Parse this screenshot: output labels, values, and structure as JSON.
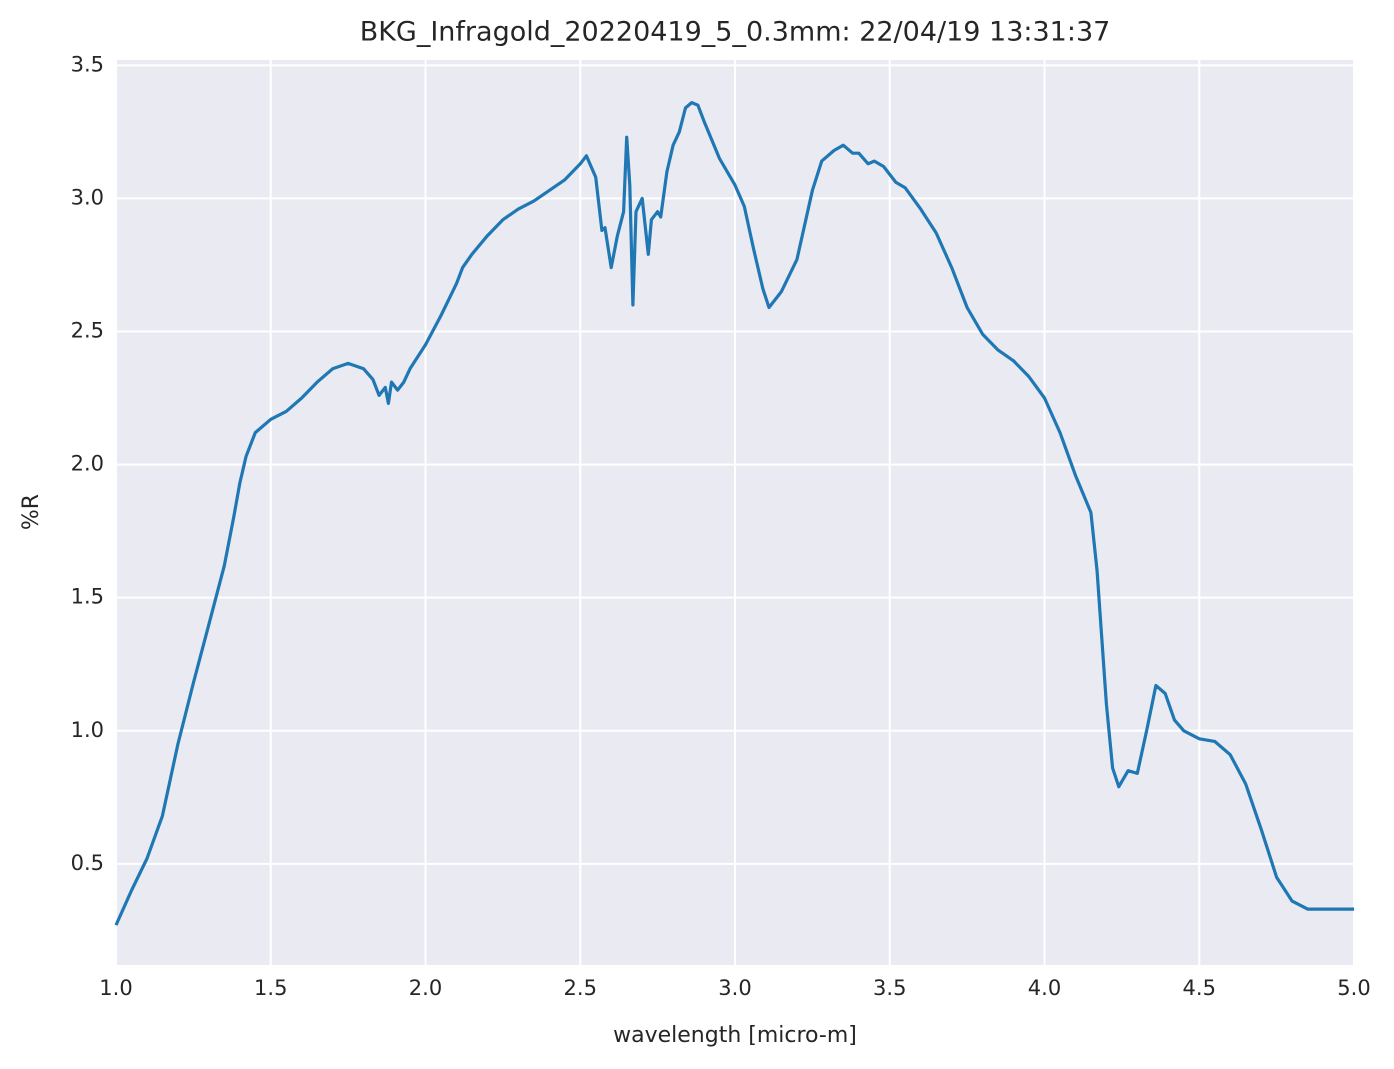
{
  "chart_data": {
    "type": "line",
    "title": "BKG_Infragold_20220419_5_0.3mm:  22/04/19 13:31:37",
    "xlabel": "wavelength [micro-m]",
    "ylabel": "%R",
    "x": [
      1.0,
      1.05,
      1.1,
      1.15,
      1.2,
      1.25,
      1.3,
      1.35,
      1.38,
      1.4,
      1.42,
      1.45,
      1.5,
      1.55,
      1.6,
      1.65,
      1.7,
      1.75,
      1.8,
      1.83,
      1.85,
      1.87,
      1.88,
      1.89,
      1.91,
      1.93,
      1.95,
      2.0,
      2.05,
      2.1,
      2.12,
      2.15,
      2.2,
      2.25,
      2.3,
      2.35,
      2.4,
      2.45,
      2.5,
      2.52,
      2.55,
      2.57,
      2.58,
      2.6,
      2.62,
      2.64,
      2.65,
      2.66,
      2.67,
      2.68,
      2.7,
      2.72,
      2.73,
      2.75,
      2.76,
      2.78,
      2.8,
      2.82,
      2.84,
      2.86,
      2.88,
      2.9,
      2.95,
      3.0,
      3.03,
      3.06,
      3.09,
      3.11,
      3.15,
      3.2,
      3.25,
      3.28,
      3.32,
      3.35,
      3.38,
      3.4,
      3.43,
      3.45,
      3.48,
      3.52,
      3.55,
      3.6,
      3.65,
      3.7,
      3.75,
      3.8,
      3.85,
      3.9,
      3.95,
      4.0,
      4.05,
      4.1,
      4.15,
      4.17,
      4.2,
      4.22,
      4.24,
      4.27,
      4.3,
      4.33,
      4.36,
      4.39,
      4.42,
      4.45,
      4.5,
      4.55,
      4.6,
      4.65,
      4.7,
      4.75,
      4.8,
      4.85,
      4.9,
      5.0
    ],
    "series": [
      {
        "name": "%R",
        "color": "#1f77b4",
        "values": [
          0.27,
          0.4,
          0.52,
          0.68,
          0.95,
          1.18,
          1.4,
          1.62,
          1.8,
          1.93,
          2.03,
          2.12,
          2.17,
          2.2,
          2.25,
          2.31,
          2.36,
          2.38,
          2.36,
          2.32,
          2.26,
          2.29,
          2.23,
          2.31,
          2.28,
          2.31,
          2.36,
          2.45,
          2.56,
          2.68,
          2.74,
          2.79,
          2.86,
          2.92,
          2.96,
          2.99,
          3.03,
          3.07,
          3.13,
          3.16,
          3.08,
          2.88,
          2.89,
          2.74,
          2.86,
          2.95,
          3.23,
          3.05,
          2.6,
          2.95,
          3.0,
          2.79,
          2.92,
          2.95,
          2.93,
          3.1,
          3.2,
          3.25,
          3.34,
          3.36,
          3.35,
          3.29,
          3.15,
          3.05,
          2.97,
          2.81,
          2.66,
          2.59,
          2.65,
          2.77,
          3.03,
          3.14,
          3.18,
          3.2,
          3.17,
          3.17,
          3.13,
          3.14,
          3.12,
          3.06,
          3.04,
          2.96,
          2.87,
          2.74,
          2.59,
          2.49,
          2.43,
          2.39,
          2.33,
          2.25,
          2.12,
          1.96,
          1.82,
          1.6,
          1.1,
          0.86,
          0.79,
          0.85,
          0.84,
          1.0,
          1.17,
          1.14,
          1.04,
          1.0,
          0.97,
          0.96,
          0.91,
          0.8,
          0.63,
          0.45,
          0.36,
          0.33,
          0.33,
          0.33
        ]
      }
    ],
    "xlim": [
      1.0,
      5.0
    ],
    "xticks": [
      {
        "value": 1,
        "label": "1.0"
      },
      1.5,
      {
        "value": 2,
        "label": "2.0"
      },
      2.5,
      {
        "value": 3,
        "label": "3.0"
      },
      3.5,
      {
        "value": 4,
        "label": "4.0"
      },
      4.5,
      {
        "value": 5,
        "label": "5.0"
      }
    ],
    "ylim": [
      0.12,
      3.52
    ],
    "yticks": [
      0.5,
      {
        "value": 1,
        "label": "1.0"
      },
      1.5,
      {
        "value": 2,
        "label": "2.0"
      },
      2.5,
      {
        "value": 3,
        "label": "3.0"
      },
      3.5
    ],
    "grid": true
  }
}
